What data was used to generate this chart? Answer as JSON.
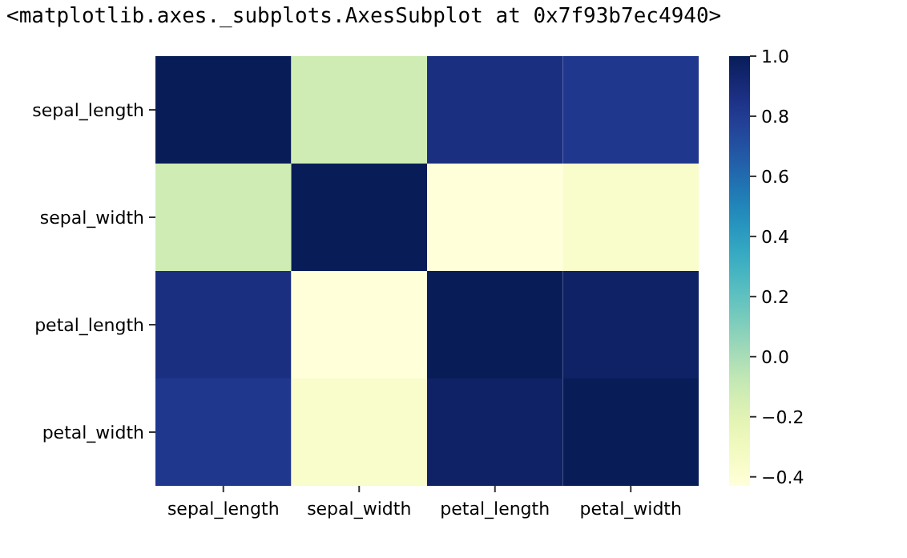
{
  "chart_data": {
    "type": "heatmap",
    "annotations": [
      "<matplotlib.axes._subplots.AxesSubplot at 0x7f93b7ec4940>"
    ],
    "categories": [
      "sepal_length",
      "sepal_width",
      "petal_length",
      "petal_width"
    ],
    "y_categories": [
      "sepal_length",
      "sepal_width",
      "petal_length",
      "petal_width"
    ],
    "cells": [
      [
        1,
        -0.12,
        0.87,
        0.82
      ],
      [
        -0.12,
        1,
        -0.43,
        -0.37
      ],
      [
        0.87,
        -0.43,
        1,
        0.96
      ],
      [
        0.82,
        -0.37,
        0.96,
        1
      ]
    ],
    "clim": [
      -0.43,
      1
    ],
    "cticks": [
      {
        "value": -0.4,
        "label": "−0.4"
      },
      {
        "value": -0.2,
        "label": "−0.2"
      },
      {
        "value": 0,
        "label": "0.0"
      },
      {
        "value": 0.2,
        "label": "0.2"
      },
      {
        "value": 0.4,
        "label": "0.4"
      },
      {
        "value": 0.6,
        "label": "0.6"
      },
      {
        "value": 0.8,
        "label": "0.8"
      },
      {
        "value": 1,
        "label": "1.0"
      }
    ]
  }
}
